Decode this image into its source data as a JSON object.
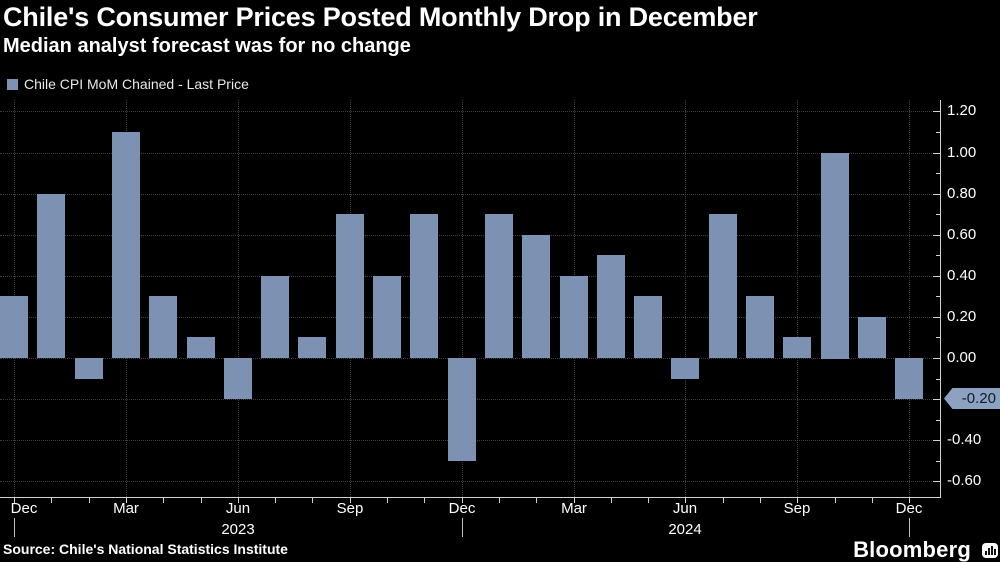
{
  "header": {
    "title": "Chile's Consumer Prices Posted Monthly Drop in December",
    "subtitle": "Median analyst forecast was for no change"
  },
  "legend": {
    "label": "Chile CPI MoM Chained - Last Price"
  },
  "chart_data": {
    "type": "bar",
    "title": "Chile CPI MoM Chained - Last Price",
    "xlabel": "",
    "ylabel": "",
    "grid": "dotted",
    "legend_position": "top-left",
    "axis_side": "right",
    "ylim": [
      -0.6,
      1.2
    ],
    "categories": [
      "Dec 2022",
      "Jan 2023",
      "Feb 2023",
      "Mar 2023",
      "Apr 2023",
      "May 2023",
      "Jun 2023",
      "Jul 2023",
      "Aug 2023",
      "Sep 2023",
      "Oct 2023",
      "Nov 2023",
      "Dec 2023",
      "Jan 2024",
      "Feb 2024",
      "Mar 2024",
      "Apr 2024",
      "May 2024",
      "Jun 2024",
      "Jul 2024",
      "Aug 2024",
      "Sep 2024",
      "Oct 2024",
      "Nov 2024",
      "Dec 2024"
    ],
    "values": [
      0.3,
      0.8,
      -0.1,
      1.1,
      0.3,
      0.1,
      -0.2,
      0.4,
      0.1,
      0.7,
      0.4,
      0.7,
      -0.5,
      0.7,
      0.6,
      0.4,
      0.5,
      0.3,
      -0.1,
      0.7,
      0.3,
      0.1,
      1.0,
      0.2,
      -0.2
    ],
    "ytick_values": [
      1.2,
      1.0,
      0.8,
      0.6,
      0.4,
      0.2,
      0.0,
      -0.2,
      -0.4,
      -0.6
    ],
    "ytick_labels": [
      "1.20",
      "1.00",
      "0.80",
      "0.60",
      "0.40",
      "0.20",
      "0.00",
      "-0.20",
      "-0.40",
      "-0.60"
    ],
    "x_axis_labels": [
      {
        "index": 0,
        "label": "Dec"
      },
      {
        "index": 3,
        "label": "Mar"
      },
      {
        "index": 6,
        "label": "Jun"
      },
      {
        "index": 9,
        "label": "Sep"
      },
      {
        "index": 12,
        "label": "Dec"
      },
      {
        "index": 15,
        "label": "Mar"
      },
      {
        "index": 18,
        "label": "Jun"
      },
      {
        "index": 21,
        "label": "Sep"
      },
      {
        "index": 24,
        "label": "Dec"
      }
    ],
    "year_labels": [
      {
        "index": 6,
        "label": "2023"
      },
      {
        "index": 18,
        "label": "2024"
      }
    ],
    "year_separator_indices": [
      0,
      12,
      24
    ],
    "last_price": {
      "value": -0.2,
      "label": "-0.20"
    }
  },
  "footer": {
    "source": "Source: Chile's National Statistics Institute",
    "brand": "Bloomberg"
  },
  "colors": {
    "background": "#000000",
    "bar": "#7d92b2",
    "grid": "#3e3e3e",
    "axis": "#d2d2d2",
    "text": "#ffffff",
    "tag_bg": "#8ca2c0",
    "tag_text": "#101b29"
  }
}
